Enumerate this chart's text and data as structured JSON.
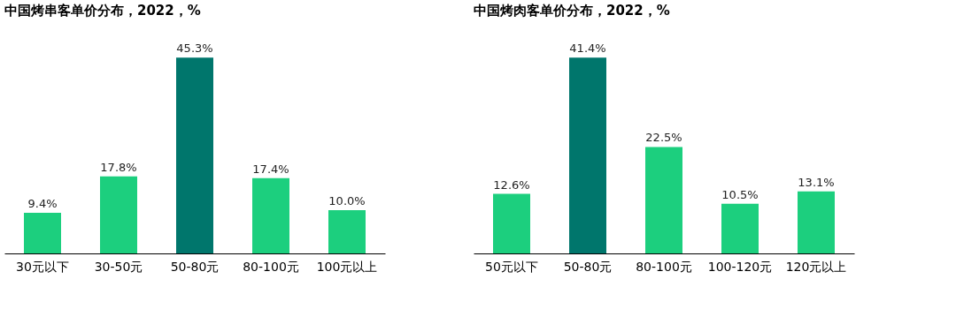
{
  "chart_data": [
    {
      "type": "bar",
      "title": "中国烤串客单价分布，2022，%",
      "categories": [
        "30元以下",
        "30-50元",
        "50-80元",
        "80-100元",
        "100元以上"
      ],
      "values": [
        9.4,
        17.8,
        45.3,
        17.4,
        10.0
      ],
      "value_labels": [
        "9.4%",
        "17.8%",
        "45.3%",
        "17.4%",
        "10.0%"
      ],
      "colors": [
        "#1ccf7e",
        "#1ccf7e",
        "#00766c",
        "#1ccf7e",
        "#1ccf7e"
      ],
      "grid": false
    },
    {
      "type": "bar",
      "title": "中国烤肉客单价分布，2022，%",
      "categories": [
        "50元以下",
        "50-80元",
        "80-100元",
        "100-120元",
        "120元以上"
      ],
      "values": [
        12.6,
        41.4,
        22.5,
        10.5,
        13.1
      ],
      "value_labels": [
        "12.6%",
        "41.4%",
        "22.5%",
        "10.5%",
        "13.1%"
      ],
      "colors": [
        "#1ccf7e",
        "#00766c",
        "#1ccf7e",
        "#1ccf7e",
        "#1ccf7e"
      ],
      "grid": false
    }
  ]
}
